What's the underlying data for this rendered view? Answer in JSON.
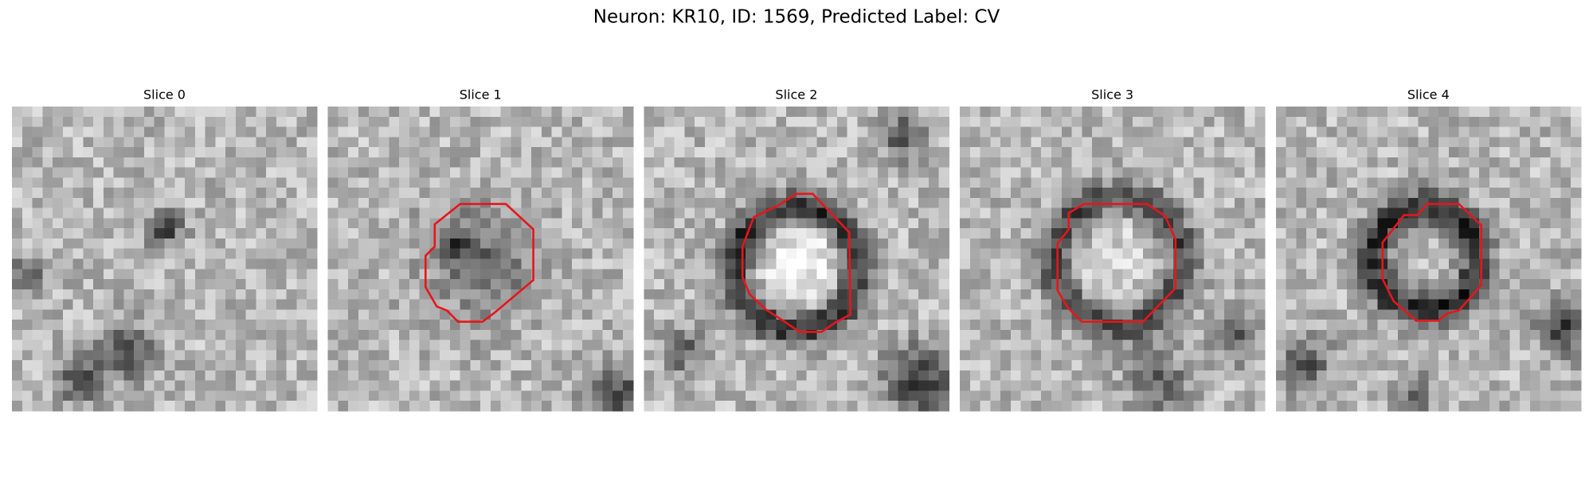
{
  "title": "Neuron: KR10, ID: 1569, Predicted Label: CV",
  "panels": [
    {
      "title": "Slice 0"
    },
    {
      "title": "Slice 1"
    },
    {
      "title": "Slice 2"
    },
    {
      "title": "Slice 3"
    },
    {
      "title": "Slice 4"
    }
  ]
}
